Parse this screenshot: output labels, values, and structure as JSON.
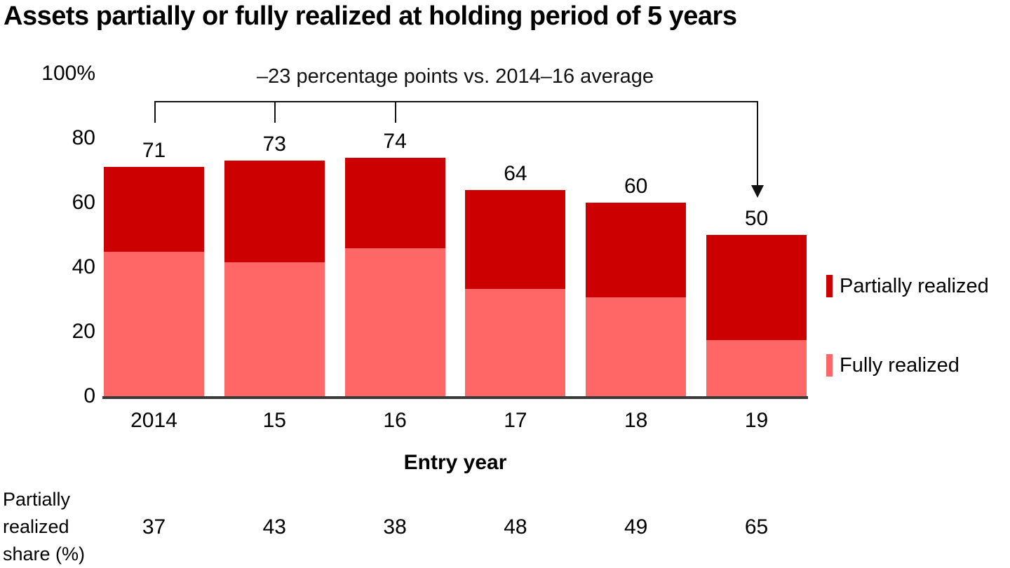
{
  "title": "Assets partially or fully realized at holding period of 5 years",
  "annotation": {
    "text": "–23 percentage points vs. 2014–16 average"
  },
  "y_axis": {
    "tick_labels": [
      "100%",
      "80",
      "60",
      "40",
      "20",
      "0"
    ],
    "tick_values": [
      100,
      80,
      60,
      40,
      20,
      0
    ]
  },
  "x_axis": {
    "title": "Entry year",
    "categories": [
      "2014",
      "15",
      "16",
      "17",
      "18",
      "19"
    ]
  },
  "legend": {
    "items": [
      {
        "label": "Partially realized",
        "color": "#CC0000"
      },
      {
        "label": "Fully realized",
        "color": "#FF6666"
      }
    ]
  },
  "footer_table": {
    "row_label_lines": [
      "Partially",
      "realized",
      "share (%)"
    ],
    "values": [
      "37",
      "43",
      "38",
      "48",
      "49",
      "65"
    ]
  },
  "chart_data": {
    "type": "bar",
    "stacked": true,
    "title": "Assets partially or fully realized at holding period of 5 years",
    "xlabel": "Entry year",
    "ylabel": "%",
    "ylim": [
      0,
      100
    ],
    "grid": false,
    "legend_position": "right",
    "categories": [
      "2014",
      "15",
      "16",
      "17",
      "18",
      "19"
    ],
    "totals": [
      71,
      73,
      74,
      64,
      60,
      50
    ],
    "bar_total_labels": [
      "71",
      "73",
      "74",
      "64",
      "60",
      "50"
    ],
    "partially_realized_share_pct": [
      37,
      43,
      38,
      48,
      49,
      65
    ],
    "series": [
      {
        "name": "Fully realized",
        "color": "#FF6666",
        "values": [
          44.7,
          41.6,
          45.9,
          33.3,
          30.6,
          17.5
        ]
      },
      {
        "name": "Partially realized",
        "color": "#CC0000",
        "values": [
          26.3,
          31.4,
          28.1,
          30.7,
          29.4,
          32.5
        ]
      }
    ],
    "annotation": "–23 percentage points vs. 2014–16 average",
    "annotation_bracket_tick_categories": [
      "2014",
      "15",
      "16"
    ],
    "annotation_arrow_category": "19"
  }
}
